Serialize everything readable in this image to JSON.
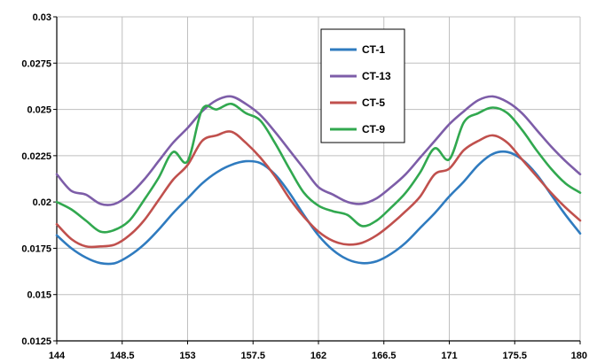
{
  "chart_data": {
    "type": "line",
    "title": "",
    "xlabel": "",
    "ylabel": "",
    "xlim": [
      144,
      180
    ],
    "ylim": [
      0.0125,
      0.03
    ],
    "x_ticks": [
      "144",
      "148.5",
      "153",
      "157.5",
      "162",
      "166.5",
      "171",
      "175.5",
      "180"
    ],
    "y_ticks": [
      "0.0125",
      "0.015",
      "0.0175",
      "0.02",
      "0.0225",
      "0.025",
      "0.0275",
      "0.03"
    ],
    "grid": true,
    "legend_position": "top-center",
    "series": [
      {
        "name": "CT-1",
        "color": "#2f7bbf",
        "x": [
          144,
          145,
          146,
          147,
          148,
          149,
          150,
          151,
          152,
          153,
          154,
          155,
          156,
          157,
          158,
          159,
          160,
          161,
          162,
          163,
          164,
          165,
          166,
          167,
          168,
          169,
          170,
          171,
          172,
          173,
          174,
          175,
          176,
          177,
          178,
          179,
          180
        ],
        "y": [
          0.0182,
          0.0175,
          0.017,
          0.0167,
          0.0167,
          0.0171,
          0.0177,
          0.0185,
          0.0194,
          0.0202,
          0.021,
          0.0216,
          0.022,
          0.0222,
          0.0221,
          0.0215,
          0.0205,
          0.0193,
          0.0182,
          0.0174,
          0.0169,
          0.0167,
          0.0168,
          0.0172,
          0.0178,
          0.0186,
          0.0194,
          0.0203,
          0.0211,
          0.022,
          0.0226,
          0.0227,
          0.0223,
          0.0215,
          0.0204,
          0.0193,
          0.0183
        ]
      },
      {
        "name": "CT-13",
        "color": "#7d5da8",
        "x": [
          144,
          145,
          146,
          147,
          148,
          149,
          150,
          151,
          152,
          153,
          154,
          155,
          156,
          157,
          158,
          159,
          160,
          161,
          162,
          163,
          164,
          165,
          166,
          167,
          168,
          169,
          170,
          171,
          172,
          173,
          174,
          175,
          176,
          177,
          178,
          179,
          180
        ],
        "y": [
          0.0215,
          0.0206,
          0.0204,
          0.0199,
          0.0199,
          0.0204,
          0.0212,
          0.0222,
          0.0232,
          0.024,
          0.0249,
          0.0255,
          0.0257,
          0.0253,
          0.0247,
          0.0238,
          0.0228,
          0.0218,
          0.0208,
          0.0204,
          0.02,
          0.0199,
          0.0202,
          0.0208,
          0.0215,
          0.0224,
          0.0233,
          0.0242,
          0.0249,
          0.0255,
          0.0257,
          0.0254,
          0.0248,
          0.0239,
          0.023,
          0.0222,
          0.0215
        ]
      },
      {
        "name": "CT-5",
        "color": "#c0504d",
        "x": [
          144,
          145,
          146,
          147,
          148,
          149,
          150,
          151,
          152,
          153,
          154,
          155,
          156,
          157,
          158,
          159,
          160,
          161,
          162,
          163,
          164,
          165,
          166,
          167,
          168,
          169,
          170,
          171,
          172,
          173,
          174,
          175,
          176,
          177,
          178,
          179,
          180
        ],
        "y": [
          0.0188,
          0.018,
          0.0176,
          0.0176,
          0.0177,
          0.0182,
          0.019,
          0.0201,
          0.0212,
          0.022,
          0.0233,
          0.0236,
          0.0238,
          0.0232,
          0.0224,
          0.0214,
          0.0202,
          0.0192,
          0.0184,
          0.0179,
          0.0177,
          0.0178,
          0.0182,
          0.0188,
          0.0195,
          0.0203,
          0.0215,
          0.0218,
          0.0228,
          0.0233,
          0.0236,
          0.0232,
          0.0223,
          0.0214,
          0.0205,
          0.0197,
          0.019
        ]
      },
      {
        "name": "CT-9",
        "color": "#31a84f",
        "x": [
          144,
          145,
          146,
          147,
          148,
          149,
          150,
          151,
          152,
          153,
          154,
          155,
          156,
          157,
          158,
          159,
          160,
          161,
          162,
          163,
          164,
          165,
          166,
          167,
          168,
          169,
          170,
          171,
          172,
          173,
          174,
          175,
          176,
          177,
          178,
          179,
          180
        ],
        "y": [
          0.02,
          0.0196,
          0.019,
          0.0184,
          0.0185,
          0.019,
          0.0201,
          0.0213,
          0.0227,
          0.0222,
          0.025,
          0.025,
          0.0253,
          0.0248,
          0.0244,
          0.0232,
          0.0218,
          0.0205,
          0.0198,
          0.0195,
          0.0193,
          0.0187,
          0.019,
          0.0197,
          0.0205,
          0.0216,
          0.0229,
          0.0223,
          0.0243,
          0.0248,
          0.0251,
          0.0248,
          0.0239,
          0.0228,
          0.0218,
          0.021,
          0.0205
        ]
      }
    ]
  }
}
